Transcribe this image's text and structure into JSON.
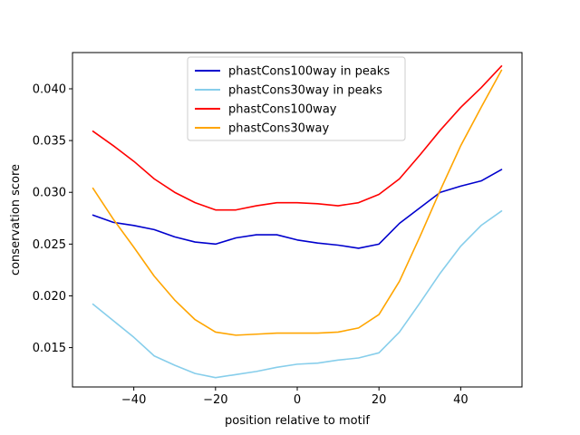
{
  "chart_data": {
    "type": "line",
    "title": "",
    "xlabel": "position relative to motif",
    "ylabel": "conservation score",
    "xlim": [
      -55,
      55
    ],
    "ylim": [
      0.0112,
      0.0435
    ],
    "x_ticks": [
      -40,
      -20,
      0,
      20,
      40
    ],
    "x_tick_labels": [
      "−40",
      "−20",
      "0",
      "20",
      "40"
    ],
    "y_ticks": [
      0.015,
      0.02,
      0.025,
      0.03,
      0.035,
      0.04
    ],
    "y_tick_labels": [
      "0.015",
      "0.020",
      "0.025",
      "0.030",
      "0.035",
      "0.040"
    ],
    "legend_position": "top-center",
    "x": [
      -50,
      -45,
      -40,
      -35,
      -30,
      -25,
      -20,
      -15,
      -10,
      -5,
      0,
      5,
      10,
      15,
      20,
      25,
      30,
      35,
      40,
      45,
      50
    ],
    "series": [
      {
        "name": "phastCons100way in peaks",
        "color": "#0000cd",
        "values": [
          0.0278,
          0.0271,
          0.0268,
          0.0264,
          0.0257,
          0.0252,
          0.025,
          0.0256,
          0.0259,
          0.0259,
          0.0254,
          0.0251,
          0.0249,
          0.0246,
          0.025,
          0.027,
          0.0285,
          0.03,
          0.0306,
          0.0311,
          0.0322
        ]
      },
      {
        "name": "phastCons30way in peaks",
        "color": "#87ceeb",
        "values": [
          0.0192,
          0.0176,
          0.016,
          0.0142,
          0.0133,
          0.0125,
          0.0121,
          0.0124,
          0.0127,
          0.0131,
          0.0134,
          0.0135,
          0.0138,
          0.014,
          0.0145,
          0.0165,
          0.0193,
          0.0222,
          0.0248,
          0.0268,
          0.0282
        ]
      },
      {
        "name": "phastCons100way",
        "color": "#ff0000",
        "values": [
          0.0359,
          0.0345,
          0.033,
          0.0313,
          0.03,
          0.029,
          0.0283,
          0.0283,
          0.0287,
          0.029,
          0.029,
          0.0289,
          0.0287,
          0.029,
          0.0298,
          0.0313,
          0.0336,
          0.036,
          0.0382,
          0.0401,
          0.0422
        ]
      },
      {
        "name": "phastCons30way",
        "color": "#ffa500",
        "values": [
          0.0304,
          0.0274,
          0.0247,
          0.0219,
          0.0196,
          0.0177,
          0.0165,
          0.0162,
          0.0163,
          0.0164,
          0.0164,
          0.0164,
          0.0165,
          0.0169,
          0.0182,
          0.0214,
          0.0257,
          0.0302,
          0.0345,
          0.0382,
          0.0418
        ]
      }
    ]
  }
}
